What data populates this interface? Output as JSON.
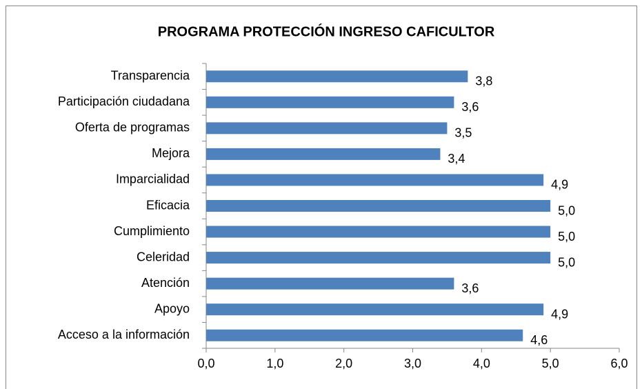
{
  "chart_data": {
    "type": "bar",
    "orientation": "horizontal",
    "title": "PROGRAMA  PROTECCIÓN  INGRESO  CAFICULTOR",
    "categories": [
      "Transparencia",
      "Participación ciudadana",
      "Oferta de programas",
      "Mejora",
      "Imparcialidad",
      "Eficacia",
      "Cumplimiento",
      "Celeridad",
      "Atención",
      "Apoyo",
      "Acceso a la información"
    ],
    "values": [
      3.8,
      3.6,
      3.5,
      3.4,
      4.9,
      5.0,
      5.0,
      5.0,
      3.6,
      4.9,
      4.6
    ],
    "value_labels": [
      "3,8",
      "3,6",
      "3,5",
      "3,4",
      "4,9",
      "5,0",
      "5,0",
      "5,0",
      "3,6",
      "4,9",
      "4,6"
    ],
    "color": "#4f81bd",
    "xlim": [
      0,
      6
    ],
    "xticks": [
      {
        "value": 0,
        "label": "0,0"
      },
      {
        "value": 1,
        "label": "1,0"
      },
      {
        "value": 2,
        "label": "2,0"
      },
      {
        "value": 3,
        "label": "3,0"
      },
      {
        "value": 4,
        "label": "4,0"
      },
      {
        "value": 5,
        "label": "5,0"
      },
      {
        "value": 6,
        "label": "6,0"
      }
    ],
    "grid": false
  }
}
